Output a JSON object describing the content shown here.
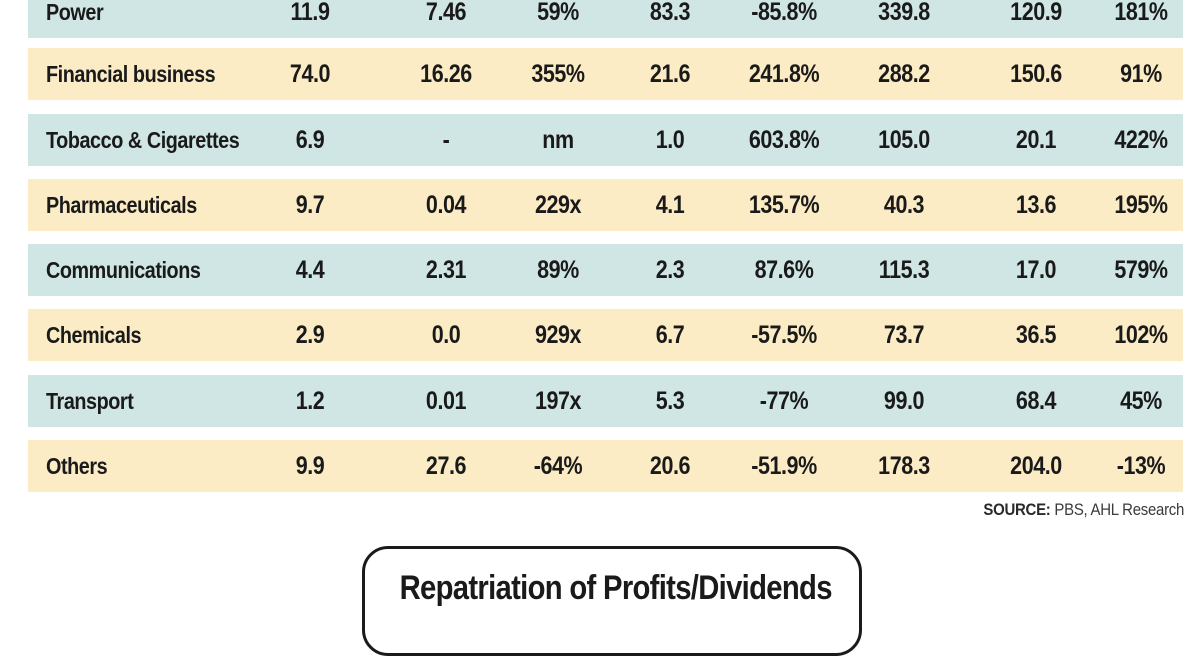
{
  "chart_data": {
    "type": "table",
    "columns": [
      "",
      "",
      "",
      "",
      "",
      "",
      "",
      "",
      ""
    ],
    "rows": [
      {
        "label": "Power",
        "values": [
          "11.9",
          "7.46",
          "59%",
          "83.3",
          "-85.8%",
          "339.8",
          "120.9",
          "181%"
        ]
      },
      {
        "label": "Financial business",
        "values": [
          "74.0",
          "16.26",
          "355%",
          "21.6",
          "241.8%",
          "288.2",
          "150.6",
          "91%"
        ]
      },
      {
        "label": "Tobacco & Cigarettes",
        "values": [
          "6.9",
          "-",
          "nm",
          "1.0",
          "603.8%",
          "105.0",
          "20.1",
          "422%"
        ]
      },
      {
        "label": "Pharmaceuticals",
        "values": [
          "9.7",
          "0.04",
          "229x",
          "4.1",
          "135.7%",
          "40.3",
          "13.6",
          "195%"
        ]
      },
      {
        "label": "Communications",
        "values": [
          "4.4",
          "2.31",
          "89%",
          "2.3",
          "87.6%",
          "115.3",
          "17.0",
          "579%"
        ]
      },
      {
        "label": "Chemicals",
        "values": [
          "2.9",
          "0.0",
          "929x",
          "6.7",
          "-57.5%",
          "73.7",
          "36.5",
          "102%"
        ]
      },
      {
        "label": "Transport",
        "values": [
          "1.2",
          "0.01",
          "197x",
          "5.3",
          "-77%",
          "99.0",
          "68.4",
          "45%"
        ]
      },
      {
        "label": "Others",
        "values": [
          "9.9",
          "27.6",
          "-64%",
          "20.6",
          "-51.9%",
          "178.3",
          "204.0",
          "-13%"
        ]
      }
    ],
    "row_colors": [
      "#cfe6e4",
      "#fbecc6"
    ]
  },
  "source": {
    "label": "SOURCE:",
    "text": "PBS, AHL Research"
  },
  "box": {
    "title": "Repatriation of Profits/Dividends"
  }
}
